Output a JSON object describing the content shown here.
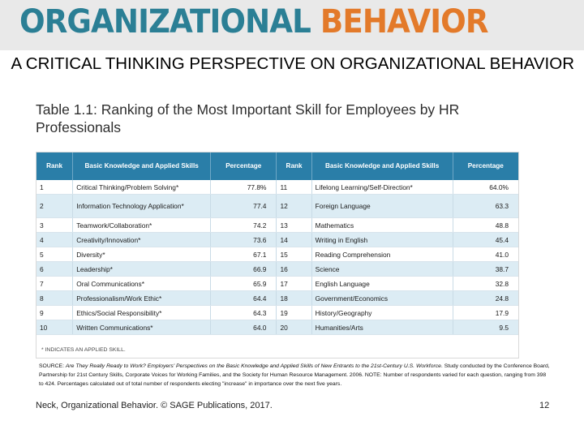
{
  "banner": {
    "word1": "ORGANIZATIONAL",
    "word2": "BEHAVIOR",
    "colors": {
      "word1": "#2b7f95",
      "word2": "#e37a2a",
      "background": "#e9e9e9"
    }
  },
  "title": "A CRITICAL THINKING PERSPECTIVE ON ORGANIZATIONAL BEHAVIOR",
  "subtitle": "Table 1.1: Ranking of the Most Important Skill for Employees by HR Professionals",
  "table": {
    "header_color": "#2a7ea8",
    "row_alt_color": "#dcecf4",
    "headers": [
      "Rank",
      "Basic Knowledge and Applied Skills",
      "Percentage",
      "Rank",
      "Basic Knowledge and Applied Skills",
      "Percentage"
    ],
    "rows": [
      [
        "1",
        "Critical Thinking/Problem Solving*",
        "77.8%",
        "11",
        "Lifelong Learning/Self-Direction*",
        "64.0%"
      ],
      [
        "2",
        "Information Technology Application*",
        "77.4",
        "12",
        "Foreign Language",
        "63.3"
      ],
      [
        "3",
        "Teamwork/Collaboration*",
        "74.2",
        "13",
        "Mathematics",
        "48.8"
      ],
      [
        "4",
        "Creativity/Innovation*",
        "73.6",
        "14",
        "Writing in English",
        "45.4"
      ],
      [
        "5",
        "Diversity*",
        "67.1",
        "15",
        "Reading Comprehension",
        "41.0"
      ],
      [
        "6",
        "Leadership*",
        "66.9",
        "16",
        "Science",
        "38.7"
      ],
      [
        "7",
        "Oral Communications*",
        "65.9",
        "17",
        "English Language",
        "32.8"
      ],
      [
        "8",
        "Professionalism/Work Ethic*",
        "64.4",
        "18",
        "Government/Economics",
        "24.8"
      ],
      [
        "9",
        "Ethics/Social Responsibility*",
        "64.3",
        "19",
        "History/Geography",
        "17.9"
      ],
      [
        "10",
        "Written Communications*",
        "64.0",
        "20",
        "Humanities/Arts",
        "9.5"
      ]
    ],
    "footnote": "* INDICATES AN APPLIED SKILL."
  },
  "source": {
    "prefix": "SOURCE: ",
    "title_italic": "Are They Really Ready to Work? Employers' Perspectives on the Basic Knowledge and Applied Skills of New Entrants to the 21st-Century U.S. Workforce",
    "rest": ". Study conducted by the Conference Board, Partnership for 21st Century Skills, Corporate Voices for Working Families, and the Society for Human Resource Management. 2006. NOTE: Number of respondents varied for each question, ranging from 398 to 424. Percentages calculated out of total number of respondents electing \"increase\" in importance over the next five years."
  },
  "footer": {
    "citation": "Neck, Organizational Behavior. © SAGE Publications, 2017.",
    "page_number": "12"
  }
}
